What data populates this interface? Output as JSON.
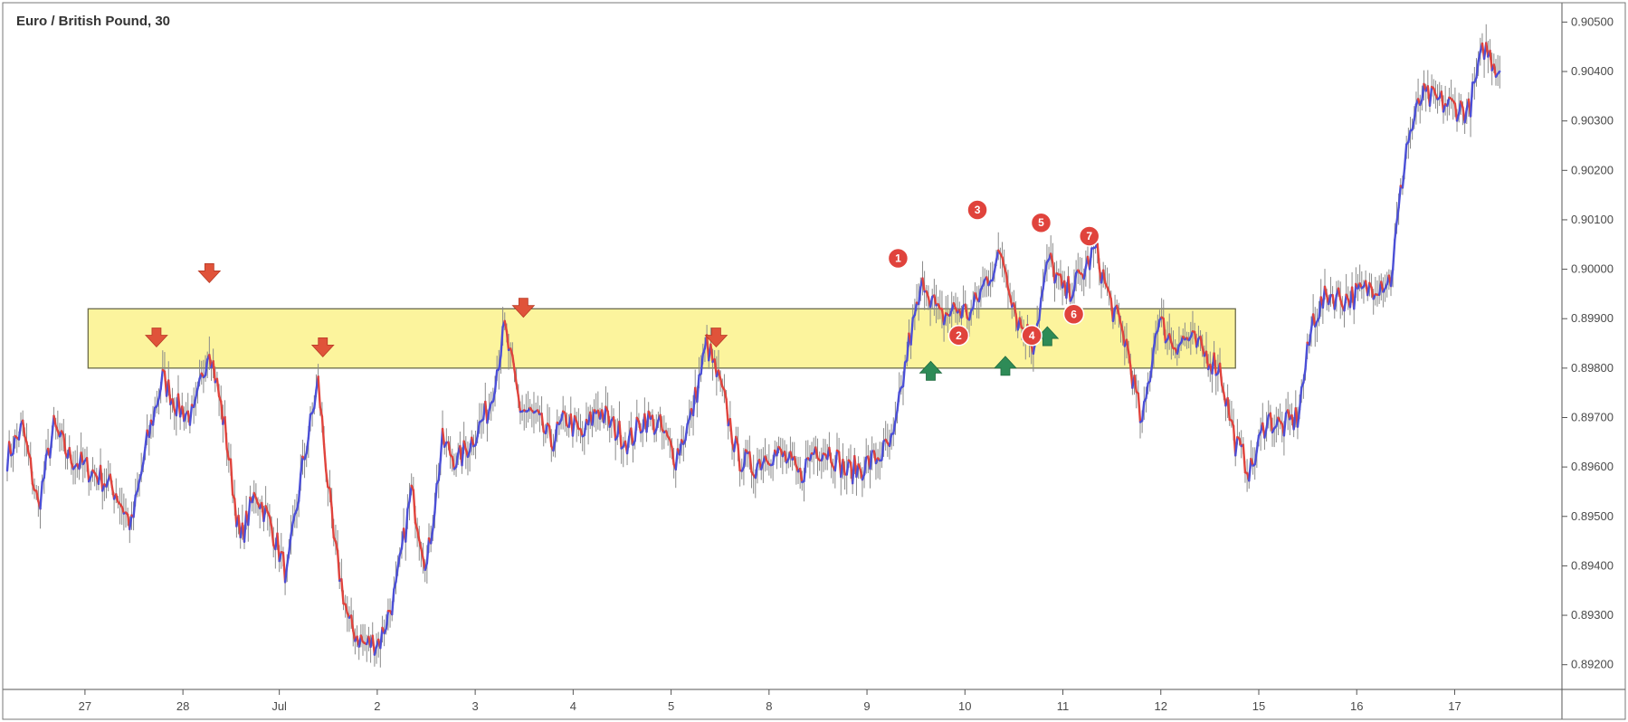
{
  "chart_data": {
    "type": "line",
    "title": "Euro / British Pound, 30",
    "xlabel": "",
    "ylabel": "",
    "ylim": [
      0.8915,
      0.9053
    ],
    "xlim": [
      0,
      100
    ],
    "grid": false,
    "y_ticks": [
      "0.90500",
      "0.90400",
      "0.90300",
      "0.90200",
      "0.90100",
      "0.90000",
      "0.89900",
      "0.89800",
      "0.89700",
      "0.89600",
      "0.89500",
      "0.89400",
      "0.89300",
      "0.89200"
    ],
    "y_tick_values": [
      0.905,
      0.904,
      0.903,
      0.902,
      0.901,
      0.9,
      0.899,
      0.898,
      0.897,
      0.896,
      0.895,
      0.894,
      0.893,
      0.892
    ],
    "x_ticks": [
      {
        "label": "27",
        "x": 5.0
      },
      {
        "label": "28",
        "x": 11.3
      },
      {
        "label": "Jul",
        "x": 17.5
      },
      {
        "label": "2",
        "x": 23.8
      },
      {
        "label": "3",
        "x": 30.1
      },
      {
        "label": "4",
        "x": 36.4
      },
      {
        "label": "5",
        "x": 42.7
      },
      {
        "label": "8",
        "x": 49.0
      },
      {
        "label": "9",
        "x": 55.3
      },
      {
        "label": "10",
        "x": 61.6
      },
      {
        "label": "11",
        "x": 67.9
      },
      {
        "label": "12",
        "x": 74.2
      },
      {
        "label": "15",
        "x": 80.5
      },
      {
        "label": "16",
        "x": 86.8
      },
      {
        "label": "17",
        "x": 93.1
      }
    ],
    "series": [
      {
        "x": [
          0,
          1,
          2,
          3,
          4,
          5,
          6,
          7,
          8,
          9,
          10,
          11,
          12,
          13,
          14,
          15,
          16,
          17,
          18,
          19,
          20,
          21,
          22,
          23,
          24,
          25,
          26,
          27,
          28,
          29,
          30,
          31,
          32,
          33,
          34,
          35,
          36,
          37,
          38,
          39,
          40,
          41,
          42,
          43,
          44,
          45,
          46,
          47,
          48,
          49,
          50,
          51,
          52,
          53,
          54,
          55,
          56,
          57,
          58,
          59,
          60,
          61,
          62,
          63,
          64,
          65,
          66,
          67,
          68,
          69,
          70,
          71,
          72,
          73,
          74,
          75,
          76,
          77,
          78,
          79,
          80,
          81,
          82,
          83,
          84,
          85,
          86,
          87,
          88,
          89,
          90,
          91,
          92,
          93,
          94,
          95,
          96
        ],
        "values": [
          0.8962,
          0.8968,
          0.8952,
          0.8968,
          0.8962,
          0.896,
          0.8958,
          0.8955,
          0.8948,
          0.8965,
          0.8978,
          0.8972,
          0.897,
          0.8985,
          0.8968,
          0.8945,
          0.8955,
          0.8948,
          0.8938,
          0.896,
          0.8977,
          0.8945,
          0.8928,
          0.8924,
          0.8925,
          0.8935,
          0.8955,
          0.894,
          0.8965,
          0.8961,
          0.8966,
          0.8972,
          0.8988,
          0.8972,
          0.897,
          0.8965,
          0.897,
          0.8966,
          0.8972,
          0.8968,
          0.8965,
          0.897,
          0.8968,
          0.8962,
          0.897,
          0.8985,
          0.8975,
          0.8962,
          0.896,
          0.8963,
          0.8962,
          0.8958,
          0.8964,
          0.8963,
          0.8959,
          0.896,
          0.8962,
          0.8965,
          0.8985,
          0.8998,
          0.899,
          0.8992,
          0.8991,
          0.8998,
          0.9003,
          0.899,
          0.8985,
          0.9002,
          0.8995,
          0.8998,
          0.9004,
          0.8993,
          0.8985,
          0.8968,
          0.899,
          0.8985,
          0.8986,
          0.8983,
          0.898,
          0.8965,
          0.8959,
          0.897,
          0.8968,
          0.897,
          0.899,
          0.8995,
          0.8994,
          0.8995,
          0.8997,
          0.8998,
          0.9025,
          0.9035,
          0.9034,
          0.9033,
          0.9032,
          0.9045,
          0.904
        ]
      }
    ],
    "zone": {
      "y_from": 0.898,
      "y_to": 0.8992,
      "x_from": 5.2,
      "x_to": 79.0
    },
    "arrows_down": [
      {
        "x": 9.6,
        "y": 0.8983
      },
      {
        "x": 13.0,
        "y": 0.8996
      },
      {
        "x": 20.3,
        "y": 0.8981
      },
      {
        "x": 33.2,
        "y": 0.8989
      },
      {
        "x": 45.6,
        "y": 0.8983
      }
    ],
    "arrows_up": [
      {
        "x": 59.4,
        "y": 0.8979
      },
      {
        "x": 64.2,
        "y": 0.898
      },
      {
        "x": 66.9,
        "y": 0.8986
      }
    ],
    "badges": [
      {
        "label": "1",
        "x": 57.3,
        "y": 0.90022
      },
      {
        "label": "2",
        "x": 61.2,
        "y": 0.89866
      },
      {
        "label": "3",
        "x": 62.4,
        "y": 0.9012
      },
      {
        "label": "4",
        "x": 65.9,
        "y": 0.89866
      },
      {
        "label": "5",
        "x": 66.5,
        "y": 0.90094
      },
      {
        "label": "6",
        "x": 68.6,
        "y": 0.89909
      },
      {
        "label": "7",
        "x": 69.6,
        "y": 0.90067
      }
    ],
    "colors": {
      "up": "#4b4fd6",
      "down": "#e0433c",
      "wick": "#8a8a8a",
      "zone_fill": "#fbf28c",
      "zone_stroke": "#6b6b4a",
      "arrow_down": "#e0533a",
      "arrow_up": "#2e8b57",
      "badge": "#e0433c",
      "axis": "#555555"
    }
  }
}
